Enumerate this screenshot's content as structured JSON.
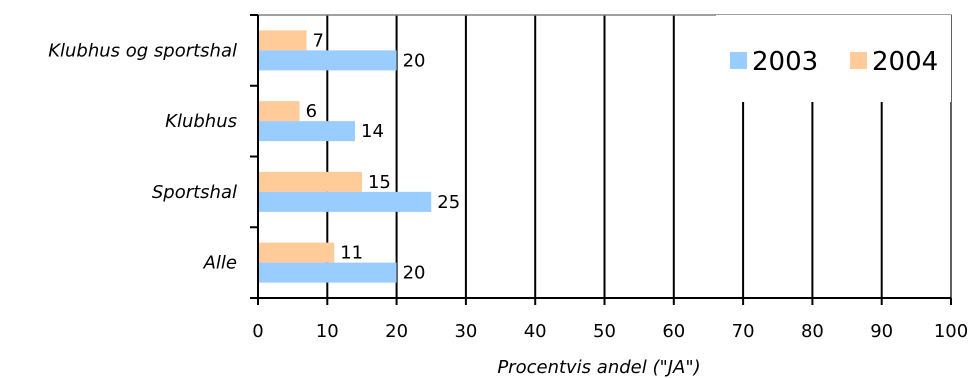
{
  "chart_data": {
    "type": "bar",
    "orientation": "horizontal",
    "categories": [
      "Klubhus og sportshal",
      "Klubhus",
      "Sportshal",
      "Alle"
    ],
    "series": [
      {
        "name": "2003",
        "values": [
          20,
          14,
          25,
          20
        ],
        "color": "#99CCFF"
      },
      {
        "name": "2004",
        "values": [
          7,
          6,
          15,
          11
        ],
        "color": "#FFCC99"
      }
    ],
    "xlabel": "Procentvis andel (\"JA\")",
    "ylabel": "",
    "title": "",
    "xlim": [
      0,
      100
    ],
    "x_ticks": [
      0,
      10,
      20,
      30,
      40,
      50,
      60,
      70,
      80,
      90,
      100
    ],
    "grid": "vertical",
    "legend_position": "top-right"
  }
}
